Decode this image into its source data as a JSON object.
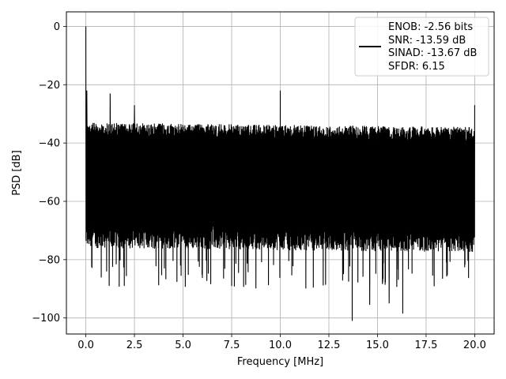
{
  "chart_data": {
    "type": "line",
    "xlabel": "Frequency [MHz]",
    "ylabel": "PSD [dB]",
    "xlim": [
      -1.0,
      21.0
    ],
    "ylim": [
      -105.5,
      5.0
    ],
    "grid": true,
    "legend_position": "top-right",
    "x_ticks": [
      0.0,
      2.5,
      5.0,
      7.5,
      10.0,
      12.5,
      15.0,
      17.5,
      20.0
    ],
    "x_tick_labels": [
      "0.0",
      "2.5",
      "5.0",
      "7.5",
      "10.0",
      "12.5",
      "15.0",
      "17.5",
      "20.0"
    ],
    "y_ticks": [
      0,
      -20,
      -40,
      -60,
      -80,
      -100
    ],
    "y_tick_labels": [
      "0",
      "−20",
      "−40",
      "−60",
      "−80",
      "−100"
    ],
    "series_color": "#000000",
    "legend_lines": [
      "ENOB: -2.56 bits",
      "SNR: -13.59 dB",
      "SINAD: -13.67 dB",
      "SFDR: 6.15"
    ],
    "frequency_range": [
      0.0,
      20.0
    ],
    "noise_band": {
      "upper_db": -33,
      "lower_db": -76,
      "min_db": -101
    },
    "spurs": [
      {
        "x": 0.0,
        "y": 0.0
      },
      {
        "x": 0.05,
        "y": -22
      },
      {
        "x": 1.25,
        "y": -23
      },
      {
        "x": 2.5,
        "y": -27
      },
      {
        "x": 10.0,
        "y": -22
      },
      {
        "x": 20.0,
        "y": -27
      }
    ],
    "deep_dips": [
      {
        "x": 13.7,
        "y": -101
      },
      {
        "x": 16.3,
        "y": -98.5
      },
      {
        "x": 14.6,
        "y": -95.5
      },
      {
        "x": 15.6,
        "y": -95
      },
      {
        "x": 7.5,
        "y": -89
      },
      {
        "x": 1.2,
        "y": -89
      }
    ]
  }
}
